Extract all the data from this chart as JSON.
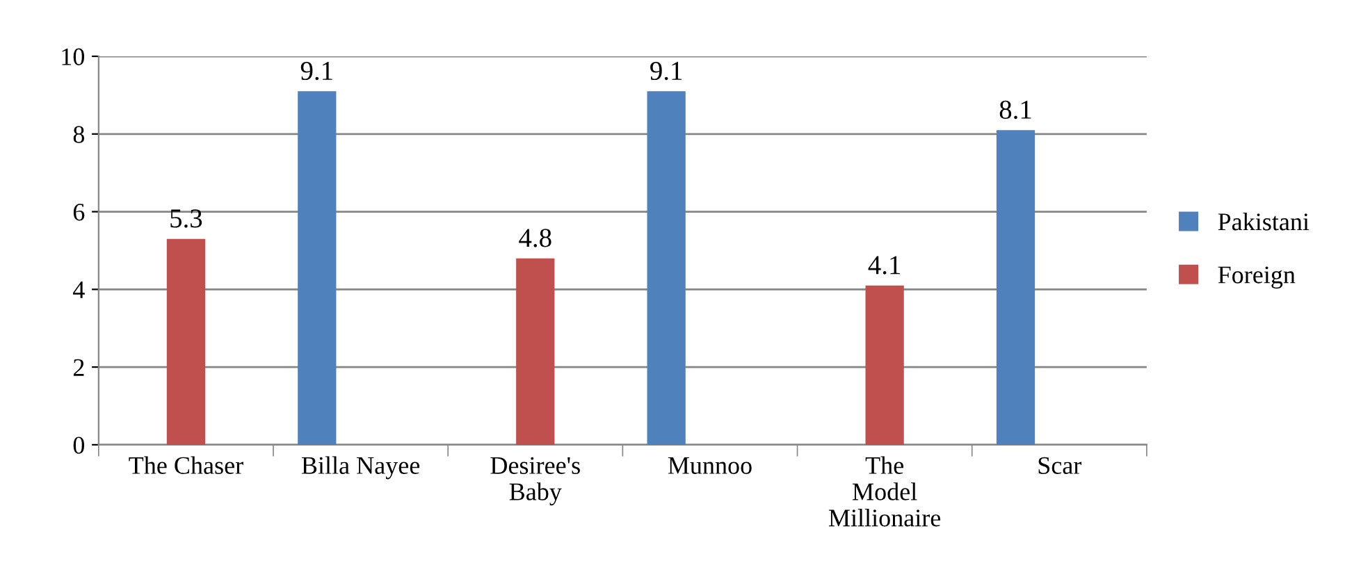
{
  "chart_data": {
    "type": "bar",
    "categories": [
      "The Chaser",
      "Billa Nayee",
      "Desiree's Baby",
      "Munnoo",
      "The Model Millionaire",
      "Scar"
    ],
    "series": [
      {
        "name": "Pakistani",
        "color": "#4f81bd",
        "values": [
          null,
          9.1,
          null,
          9.1,
          null,
          8.1
        ]
      },
      {
        "name": "Foreign",
        "color": "#c0504d",
        "values": [
          5.3,
          null,
          4.8,
          null,
          4.1,
          null
        ]
      }
    ],
    "ylim": [
      0,
      10
    ],
    "yticks": [
      0,
      2,
      4,
      6,
      8,
      10
    ],
    "grid": "y",
    "legend": "right",
    "data_labels": true
  }
}
